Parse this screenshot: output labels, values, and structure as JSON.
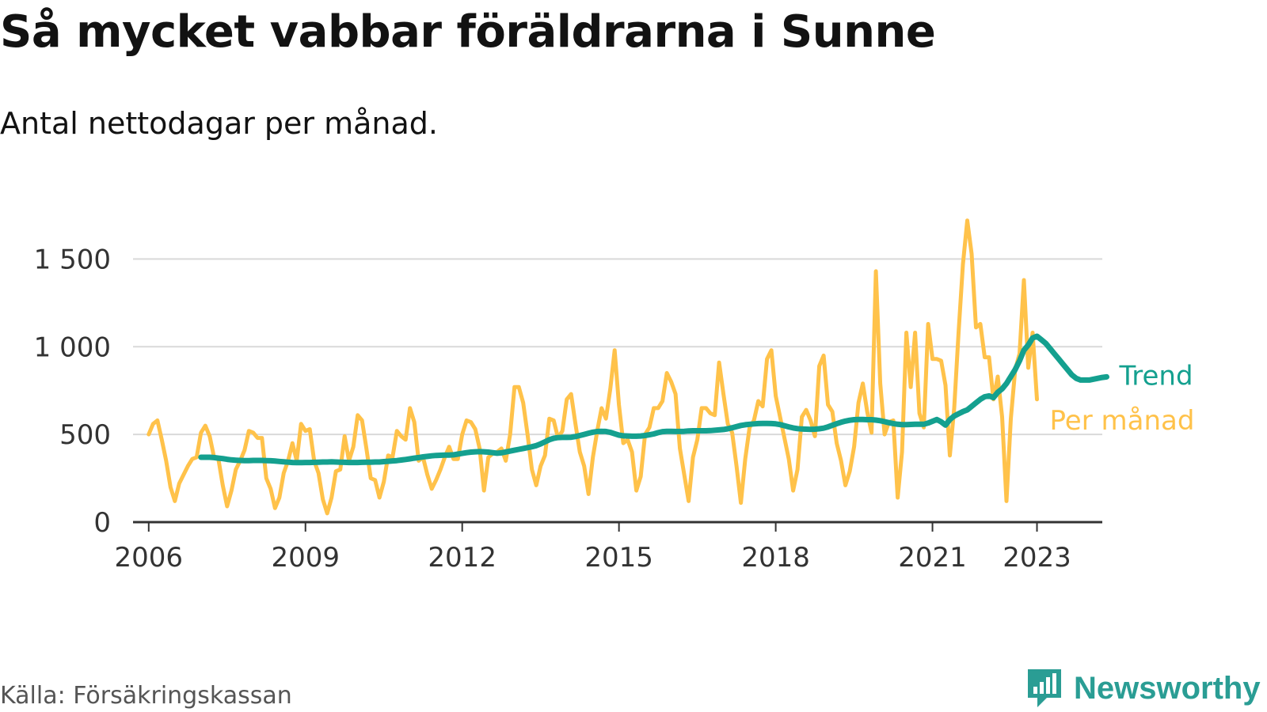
{
  "title": "Så mycket vabbar föräldrarna i Sunne",
  "subtitle": "Antal nettodagar per månad.",
  "source": "Källa: Försäkringskassan",
  "brand": "Newsworthy",
  "colors": {
    "monthly": "#ffc24a",
    "trend": "#14a08f",
    "grid": "#d9d9d9",
    "axis": "#333333",
    "text": "#333333"
  },
  "chart_data": {
    "type": "line",
    "title": "Så mycket vabbar föräldrarna i Sunne",
    "subtitle": "Antal nettodagar per månad.",
    "xlabel": "",
    "ylabel": "",
    "ylim": [
      0,
      1500
    ],
    "yticks": [
      0,
      500,
      1000,
      1500
    ],
    "ytick_labels": [
      "0",
      "500",
      "1 000",
      "1 500"
    ],
    "xlim": [
      2005.7,
      2024.25
    ],
    "xticks": [
      2006,
      2009,
      2012,
      2015,
      2018,
      2021,
      2023
    ],
    "xtick_labels": [
      "2006",
      "2009",
      "2012",
      "2015",
      "2018",
      "2021",
      "2023"
    ],
    "grid": true,
    "series": [
      {
        "name": "Per månad",
        "color": "#ffc24a",
        "start": "2006-01",
        "values": [
          500,
          560,
          580,
          470,
          350,
          200,
          120,
          220,
          270,
          320,
          360,
          370,
          510,
          550,
          490,
          370,
          360,
          210,
          90,
          180,
          300,
          350,
          410,
          520,
          510,
          480,
          480,
          250,
          190,
          80,
          140,
          280,
          350,
          450,
          350,
          560,
          520,
          530,
          350,
          280,
          130,
          50,
          140,
          290,
          300,
          490,
          350,
          430,
          610,
          580,
          420,
          250,
          240,
          140,
          230,
          380,
          370,
          520,
          490,
          470,
          650,
          570,
          350,
          370,
          270,
          190,
          240,
          300,
          370,
          430,
          360,
          360,
          500,
          580,
          570,
          530,
          420,
          180,
          370,
          390,
          400,
          420,
          350,
          500,
          770,
          770,
          680,
          500,
          300,
          210,
          320,
          380,
          590,
          580,
          480,
          520,
          700,
          730,
          560,
          400,
          320,
          160,
          370,
          520,
          650,
          590,
          760,
          980,
          670,
          450,
          470,
          400,
          180,
          260,
          500,
          540,
          650,
          650,
          690,
          850,
          800,
          730,
          420,
          270,
          120,
          370,
          470,
          650,
          650,
          620,
          610,
          910,
          730,
          560,
          510,
          320,
          110,
          360,
          540,
          580,
          690,
          660,
          930,
          980,
          720,
          600,
          480,
          360,
          180,
          300,
          600,
          640,
          580,
          490,
          890,
          950,
          670,
          630,
          450,
          350,
          210,
          290,
          430,
          680,
          790,
          630,
          510,
          1430,
          790,
          500,
          570,
          580,
          140,
          400,
          1080,
          770,
          1080,
          620,
          540,
          1130,
          930,
          930,
          920,
          780,
          380,
          650,
          1080,
          1470,
          1720,
          1530,
          1110,
          1130,
          940,
          940,
          700,
          830,
          600,
          120,
          590,
          870,
          960,
          1380,
          880,
          1080,
          700
        ]
      },
      {
        "name": "Trend",
        "color": "#14a08f",
        "start": "2007-01",
        "values": [
          370,
          370,
          370,
          368,
          365,
          362,
          358,
          355,
          353,
          352,
          351,
          351,
          352,
          352,
          352,
          351,
          350,
          348,
          346,
          344,
          342,
          340,
          339,
          339,
          340,
          340,
          341,
          342,
          343,
          343,
          344,
          343,
          342,
          341,
          340,
          340,
          340,
          341,
          342,
          342,
          343,
          343,
          345,
          347,
          349,
          351,
          354,
          357,
          361,
          365,
          368,
          372,
          375,
          378,
          380,
          381,
          382,
          382,
          384,
          388,
          392,
          396,
          399,
          401,
          402,
          401,
          399,
          396,
          393,
          395,
          400,
          405,
          410,
          415,
          420,
          425,
          430,
          436,
          446,
          458,
          470,
          478,
          482,
          483,
          483,
          484,
          488,
          494,
          500,
          507,
          513,
          517,
          518,
          517,
          512,
          504,
          496,
          492,
          491,
          490,
          490,
          491,
          494,
          498,
          503,
          510,
          516,
          518,
          518,
          517,
          517,
          518,
          520,
          521,
          521,
          521,
          521,
          522,
          524,
          526,
          528,
          532,
          538,
          545,
          551,
          555,
          558,
          560,
          562,
          563,
          563,
          562,
          560,
          556,
          550,
          543,
          537,
          533,
          531,
          530,
          529,
          530,
          532,
          536,
          543,
          552,
          561,
          569,
          576,
          581,
          584,
          585,
          585,
          584,
          584,
          582,
          578,
          573,
          567,
          562,
          558,
          556,
          556,
          557,
          558,
          558,
          558,
          565,
          575,
          585,
          572,
          553,
          585,
          605,
          618,
          630,
          640,
          660,
          680,
          700,
          715,
          720,
          710,
          740,
          760,
          790,
          830,
          870,
          920,
          980,
          1010,
          1050,
          1060,
          1040,
          1020,
          990,
          960,
          930,
          900,
          870,
          840,
          820,
          810,
          810,
          810,
          815,
          820,
          825,
          828
        ]
      }
    ],
    "series_labels": [
      {
        "series": "Trend",
        "text": "Trend"
      },
      {
        "series": "Per månad",
        "text": "Per månad"
      }
    ]
  }
}
